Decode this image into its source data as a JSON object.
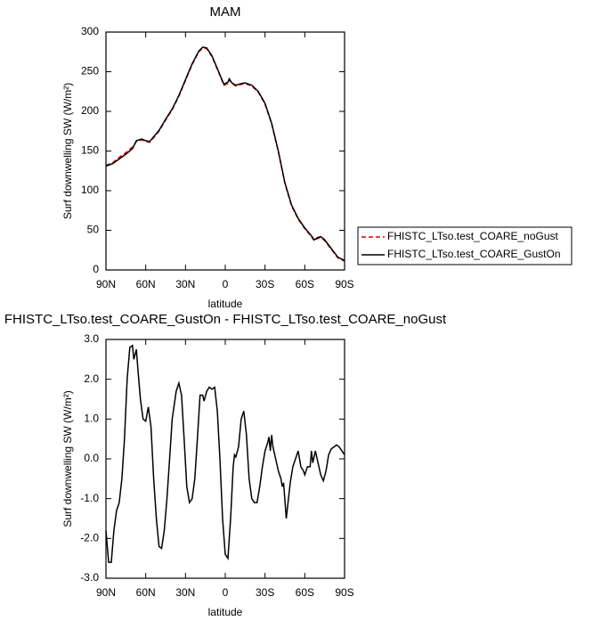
{
  "chart_data": [
    {
      "type": "line",
      "title": "MAM",
      "xlabel": "latitude",
      "ylabel": "Surf downwelling SW (W/m²)",
      "x": [
        90,
        85,
        80,
        75,
        70,
        67,
        63,
        60,
        57,
        54,
        50,
        45,
        40,
        35,
        30,
        25,
        20,
        17,
        14,
        10,
        5,
        1,
        -2,
        -3,
        -5,
        -8,
        -12,
        -15,
        -20,
        -25,
        -30,
        -35,
        -40,
        -45,
        -50,
        -55,
        -60,
        -65,
        -67,
        -70,
        -72,
        -75,
        -80,
        -85,
        -90
      ],
      "series": [
        {
          "name": "FHISTC_LTso.test_COARE_noGust",
          "color": "#e00000",
          "dash": true,
          "values": [
            132,
            135,
            142,
            148,
            155,
            162,
            164,
            162,
            161,
            167,
            175,
            189,
            202,
            219,
            239,
            259,
            275,
            280,
            279,
            269,
            249,
            233,
            235,
            240,
            235,
            232,
            234,
            235,
            232,
            224,
            209,
            184,
            149,
            109,
            81,
            64,
            52,
            42,
            37,
            40,
            41,
            37,
            26,
            15,
            11
          ]
        },
        {
          "name": "FHISTC_LTso.test_COARE_GustOn",
          "color": "#000000",
          "dash": false,
          "values": [
            131,
            134,
            140,
            146,
            153,
            163,
            165,
            163,
            162,
            168,
            176,
            190,
            203,
            220,
            240,
            260,
            276,
            281,
            280,
            270,
            250,
            234,
            237,
            241,
            236,
            233,
            235,
            236,
            233,
            225,
            210,
            185,
            150,
            110,
            82,
            65,
            53,
            43,
            38,
            41,
            42,
            38,
            27,
            16,
            12
          ]
        }
      ],
      "xlim": [
        90,
        -90
      ],
      "xticks": [
        {
          "value": 90,
          "label": "90N"
        },
        {
          "value": 60,
          "label": "60N"
        },
        {
          "value": 30,
          "label": "30N"
        },
        0,
        {
          "value": -30,
          "label": "30S"
        },
        {
          "value": -60,
          "label": "60S"
        },
        {
          "value": -90,
          "label": "90S"
        }
      ],
      "ylim": [
        0,
        300
      ],
      "yticks": [
        0,
        50,
        100,
        150,
        200,
        250,
        300
      ],
      "legend": "right"
    },
    {
      "type": "line",
      "title": "FHISTC_LTso.test_COARE_GustOn - FHISTC_LTso.test_COARE_noGust",
      "xlabel": "latitude",
      "ylabel": "Surf downwelling SW (W/m²)",
      "x": [
        90,
        88,
        86,
        84,
        82,
        80,
        78,
        76,
        74,
        72,
        70,
        69,
        67,
        66,
        64,
        62,
        60,
        58,
        56,
        54,
        52,
        50,
        48,
        46,
        44,
        42,
        40,
        37,
        35,
        33,
        31,
        29,
        27,
        25,
        23,
        21,
        19,
        17,
        16,
        14,
        12,
        10,
        8,
        6,
        4,
        2,
        0,
        -2,
        -4,
        -6,
        -7,
        -8,
        -10,
        -12,
        -14,
        -16,
        -18,
        -20,
        -22,
        -24,
        -26,
        -28,
        -30,
        -32,
        -33,
        -34,
        -35,
        -36,
        -38,
        -40,
        -42,
        -43,
        -44,
        -46,
        -47,
        -49,
        -51,
        -53,
        -55,
        -57,
        -59,
        -60,
        -62,
        -64,
        -65,
        -66,
        -68,
        -70,
        -72,
        -74,
        -76,
        -78,
        -80,
        -82,
        -84,
        -86,
        -88,
        -90
      ],
      "series": [
        {
          "name": null,
          "color": "#000000",
          "dash": false,
          "values": [
            -1.8,
            -2.6,
            -2.6,
            -1.8,
            -1.3,
            -1.1,
            -0.5,
            0.5,
            2.0,
            2.8,
            2.85,
            2.5,
            2.75,
            2.3,
            1.5,
            1.0,
            0.95,
            1.3,
            0.8,
            -0.5,
            -1.5,
            -2.2,
            -2.25,
            -1.8,
            -1.0,
            0,
            1.0,
            1.7,
            1.9,
            1.6,
            0.5,
            -0.7,
            -1.1,
            -1.0,
            -0.5,
            0.5,
            1.6,
            1.6,
            1.45,
            1.7,
            1.8,
            1.75,
            1.8,
            1.2,
            0,
            -1.5,
            -2.4,
            -2.5,
            -1.5,
            -0.2,
            0.1,
            0.05,
            0.3,
            1.0,
            1.2,
            0.6,
            -0.5,
            -1.0,
            -1.1,
            -1.1,
            -0.7,
            -0.2,
            0.2,
            0.4,
            0.55,
            0.2,
            0.6,
            0.3,
            0.0,
            -0.3,
            -0.5,
            -0.7,
            -0.6,
            -1.5,
            -1.2,
            -0.6,
            -0.2,
            0.0,
            0.2,
            -0.2,
            -0.3,
            -0.4,
            -0.2,
            -0.2,
            0.2,
            -0.1,
            0.2,
            -0.1,
            -0.4,
            -0.55,
            -0.3,
            0.1,
            0.25,
            0.3,
            0.35,
            0.3,
            0.2,
            0.1
          ]
        }
      ],
      "xlim": [
        90,
        -90
      ],
      "xticks": [
        {
          "value": 90,
          "label": "90N"
        },
        {
          "value": 60,
          "label": "60N"
        },
        {
          "value": 30,
          "label": "30N"
        },
        0,
        {
          "value": -30,
          "label": "30S"
        },
        {
          "value": -60,
          "label": "60S"
        },
        {
          "value": -90,
          "label": "90S"
        }
      ],
      "ylim": [
        -3,
        3
      ],
      "yticks": [
        {
          "value": -3,
          "label": "-3.0"
        },
        {
          "value": -2,
          "label": "-2.0"
        },
        {
          "value": -1,
          "label": "-1.0"
        },
        {
          "value": 0,
          "label": "0.0"
        },
        {
          "value": 1,
          "label": "1.0"
        },
        {
          "value": 2,
          "label": "2.0"
        },
        {
          "value": 3,
          "label": "3.0"
        }
      ]
    }
  ]
}
